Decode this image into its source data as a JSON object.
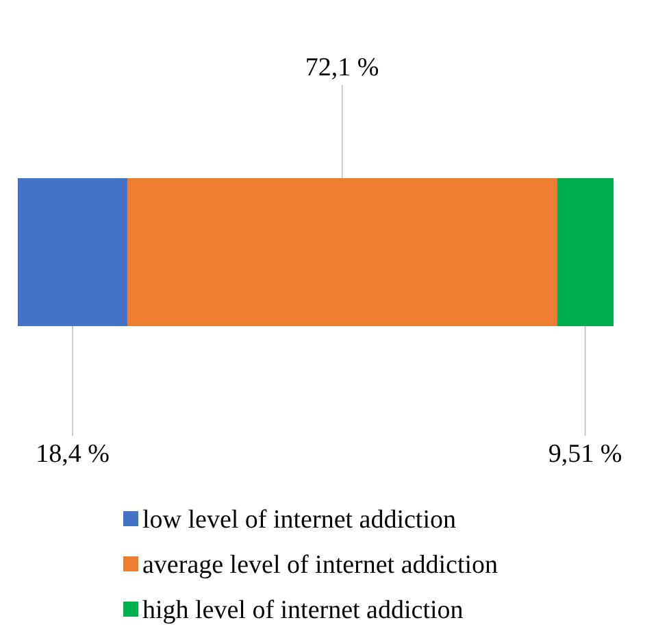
{
  "chart_data": {
    "type": "bar",
    "orientation": "horizontal",
    "stacked": true,
    "categories": [
      null
    ],
    "legend": "bottom",
    "series": [
      {
        "name": "low level of internet addiction",
        "color": "#4472c4",
        "values": [
          18.4
        ],
        "value_labels": [
          "18,4 %"
        ]
      },
      {
        "name": "average level of internet addiction",
        "color": "#ed7d31",
        "values": [
          72.1
        ],
        "value_labels": [
          "72,1 %"
        ]
      },
      {
        "name": "high level of internet addiction",
        "color": "#00b050",
        "values": [
          9.51
        ],
        "value_labels": [
          "9,51 %"
        ]
      }
    ]
  }
}
